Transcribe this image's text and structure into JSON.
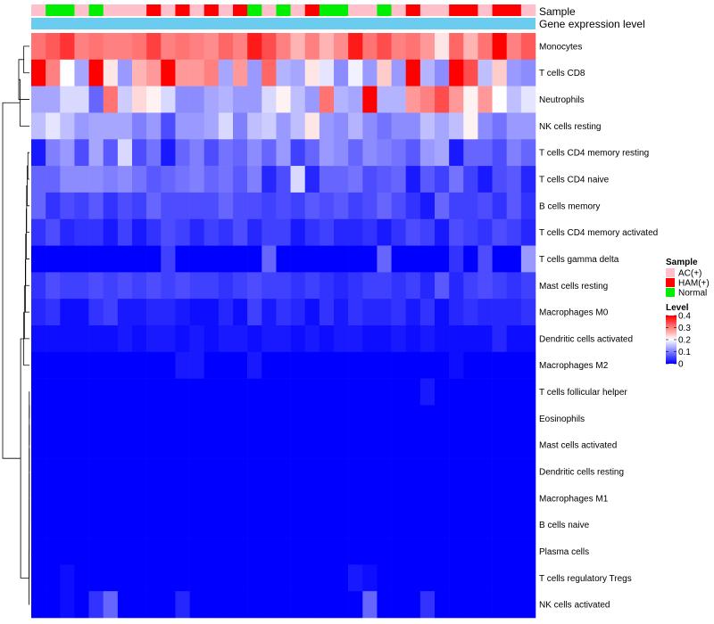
{
  "chart_data": {
    "type": "heatmap",
    "title": "",
    "annotation_tracks": [
      {
        "label": "Sample",
        "values": [
          "AC(+)",
          "Normal",
          "Normal",
          "AC(+)",
          "Normal",
          "AC(+)",
          "AC(+)",
          "AC(+)",
          "HAM(+)",
          "AC(+)",
          "HAM(+)",
          "AC(+)",
          "HAM(+)",
          "AC(+)",
          "HAM(+)",
          "Normal",
          "AC(+)",
          "Normal",
          "AC(+)",
          "HAM(+)",
          "Normal",
          "Normal",
          "AC(+)",
          "AC(+)",
          "Normal",
          "AC(+)",
          "HAM(+)",
          "AC(+)",
          "AC(+)",
          "HAM(+)",
          "HAM(+)",
          "AC(+)",
          "HAM(+)",
          "HAM(+)",
          "AC(+)"
        ]
      },
      {
        "label": "Gene expression level",
        "values": [
          "Gene expression level"
        ]
      }
    ],
    "rows": [
      "Monocytes",
      "T cells CD8",
      "Neutrophils",
      "NK cells resting",
      "T cells CD4 memory resting",
      "T cells CD4 naive",
      "B cells memory",
      "T cells CD4 memory activated",
      "T cells gamma delta",
      "Mast cells resting",
      "Macrophages M0",
      "Dendritic cells activated",
      "Macrophages M2",
      "T cells follicular helper",
      "Eosinophils",
      "Mast cells activated",
      "Dendritic cells resting",
      "Macrophages M1",
      "B cells naive",
      "Plasma cells",
      "T cells regulatory  Tregs",
      "NK cells activated"
    ],
    "values": [
      [
        0.31,
        0.33,
        0.36,
        0.3,
        0.31,
        0.3,
        0.3,
        0.31,
        0.35,
        0.3,
        0.31,
        0.3,
        0.29,
        0.32,
        0.3,
        0.38,
        0.34,
        0.3,
        0.26,
        0.3,
        0.26,
        0.29,
        0.38,
        0.31,
        0.34,
        0.3,
        0.31,
        0.28,
        0.22,
        0.32,
        0.26,
        0.31,
        0.4,
        0.3,
        0.33
      ],
      [
        0.4,
        0.3,
        0.2,
        0.13,
        0.4,
        0.22,
        0.12,
        0.26,
        0.28,
        0.4,
        0.28,
        0.28,
        0.3,
        0.13,
        0.28,
        0.12,
        0.32,
        0.14,
        0.13,
        0.22,
        0.18,
        0.11,
        0.19,
        0.12,
        0.24,
        0.12,
        0.4,
        0.14,
        0.11,
        0.4,
        0.34,
        0.15,
        0.24,
        0.12,
        0.11
      ],
      [
        0.13,
        0.13,
        0.17,
        0.17,
        0.08,
        0.31,
        0.16,
        0.23,
        0.21,
        0.17,
        0.11,
        0.11,
        0.13,
        0.14,
        0.12,
        0.12,
        0.17,
        0.21,
        0.15,
        0.12,
        0.31,
        0.14,
        0.13,
        0.4,
        0.14,
        0.14,
        0.28,
        0.3,
        0.34,
        0.28,
        0.21,
        0.28,
        0.2,
        0.15,
        0.18
      ],
      [
        0.15,
        0.18,
        0.15,
        0.12,
        0.13,
        0.13,
        0.13,
        0.1,
        0.12,
        0.06,
        0.12,
        0.12,
        0.13,
        0.17,
        0.1,
        0.15,
        0.16,
        0.12,
        0.15,
        0.22,
        0.12,
        0.11,
        0.14,
        0.11,
        0.09,
        0.11,
        0.11,
        0.15,
        0.13,
        0.15,
        0.21,
        0.11,
        0.09,
        0.12,
        0.12
      ],
      [
        0.02,
        0.1,
        0.12,
        0.06,
        0.13,
        0.07,
        0.17,
        0.06,
        0.09,
        0.02,
        0.08,
        0.1,
        0.06,
        0.09,
        0.08,
        0.11,
        0.08,
        0.12,
        0.05,
        0.08,
        0.12,
        0.11,
        0.08,
        0.11,
        0.1,
        0.09,
        0.07,
        0.12,
        0.13,
        0.02,
        0.08,
        0.08,
        0.06,
        0.1,
        0.08
      ],
      [
        0.08,
        0.08,
        0.11,
        0.11,
        0.11,
        0.1,
        0.11,
        0.09,
        0.07,
        0.08,
        0.09,
        0.1,
        0.08,
        0.09,
        0.07,
        0.1,
        0.03,
        0.06,
        0.17,
        0.03,
        0.08,
        0.08,
        0.09,
        0.06,
        0.07,
        0.08,
        0.02,
        0.07,
        0.05,
        0.09,
        0.05,
        0.02,
        0.06,
        0.07,
        0.03
      ],
      [
        0.08,
        0.04,
        0.06,
        0.05,
        0.07,
        0.04,
        0.06,
        0.05,
        0.08,
        0.06,
        0.06,
        0.06,
        0.06,
        0.08,
        0.06,
        0.06,
        0.05,
        0.06,
        0.05,
        0.07,
        0.06,
        0.07,
        0.05,
        0.06,
        0.08,
        0.06,
        0.04,
        0.02,
        0.08,
        0.05,
        0.05,
        0.06,
        0.04,
        0.07,
        0.04
      ],
      [
        0.04,
        0.06,
        0.03,
        0.04,
        0.04,
        0.02,
        0.05,
        0.02,
        0.04,
        0.06,
        0.05,
        0.03,
        0.05,
        0.04,
        0.06,
        0.03,
        0.05,
        0.05,
        0.02,
        0.04,
        0.05,
        0.03,
        0.03,
        0.04,
        0.02,
        0.04,
        0.06,
        0.05,
        0.02,
        0.06,
        0.05,
        0.04,
        0.06,
        0.05,
        0.03
      ],
      [
        0.0,
        0.0,
        0.0,
        0.0,
        0.0,
        0.0,
        0.0,
        0.0,
        0.0,
        0.05,
        0.0,
        0.0,
        0.0,
        0.0,
        0.0,
        0.0,
        0.08,
        0.0,
        0.0,
        0.0,
        0.0,
        0.0,
        0.0,
        0.0,
        0.08,
        0.0,
        0.0,
        0.0,
        0.0,
        0.04,
        0.0,
        0.06,
        0.0,
        0.0,
        0.12
      ],
      [
        0.04,
        0.06,
        0.05,
        0.05,
        0.06,
        0.05,
        0.06,
        0.05,
        0.06,
        0.05,
        0.06,
        0.05,
        0.05,
        0.04,
        0.05,
        0.06,
        0.05,
        0.05,
        0.04,
        0.05,
        0.04,
        0.03,
        0.04,
        0.05,
        0.05,
        0.04,
        0.05,
        0.03,
        0.07,
        0.03,
        0.05,
        0.06,
        0.05,
        0.04,
        0.05
      ],
      [
        0.03,
        0.04,
        0.01,
        0.01,
        0.04,
        0.05,
        0.02,
        0.02,
        0.03,
        0.03,
        0.02,
        0.01,
        0.01,
        0.03,
        0.01,
        0.05,
        0.02,
        0.04,
        0.03,
        0.01,
        0.04,
        0.02,
        0.04,
        0.03,
        0.03,
        0.04,
        0.02,
        0.04,
        0.01,
        0.03,
        0.04,
        0.03,
        0.03,
        0.03,
        0.04
      ],
      [
        0.01,
        0.01,
        0.01,
        0.01,
        0.01,
        0.01,
        0.02,
        0.01,
        0.02,
        0.02,
        0.01,
        0.02,
        0.01,
        0.02,
        0.02,
        0.01,
        0.02,
        0.02,
        0.01,
        0.02,
        0.01,
        0.02,
        0.02,
        0.01,
        0.01,
        0.02,
        0.01,
        0.02,
        0.01,
        0.01,
        0.01,
        0.01,
        0.03,
        0.01,
        0.01
      ],
      [
        0.0,
        0.0,
        0.0,
        0.0,
        0.0,
        0.0,
        0.0,
        0.0,
        0.0,
        0.0,
        0.02,
        0.02,
        0.0,
        0.0,
        0.0,
        0.02,
        0.0,
        0.0,
        0.0,
        0.0,
        0.0,
        0.0,
        0.0,
        0.0,
        0.0,
        0.0,
        0.0,
        0.0,
        0.0,
        0.01,
        0.0,
        0.0,
        0.0,
        0.0,
        0.0
      ],
      [
        0.0,
        0.0,
        0.0,
        0.0,
        0.0,
        0.0,
        0.0,
        0.0,
        0.0,
        0.0,
        0.0,
        0.0,
        0.0,
        0.0,
        0.0,
        0.0,
        0.0,
        0.0,
        0.0,
        0.0,
        0.0,
        0.0,
        0.0,
        0.0,
        0.0,
        0.0,
        0.0,
        0.02,
        0.0,
        0.0,
        0.0,
        0.0,
        0.0,
        0.0,
        0.0
      ],
      [
        0.0,
        0.0,
        0.0,
        0.0,
        0.0,
        0.0,
        0.0,
        0.0,
        0.0,
        0.0,
        0.0,
        0.0,
        0.0,
        0.0,
        0.0,
        0.0,
        0.0,
        0.0,
        0.0,
        0.0,
        0.0,
        0.0,
        0.0,
        0.0,
        0.0,
        0.0,
        0.0,
        0.0,
        0.0,
        0.0,
        0.0,
        0.0,
        0.0,
        0.0,
        0.0
      ],
      [
        0.0,
        0.0,
        0.0,
        0.0,
        0.0,
        0.0,
        0.0,
        0.0,
        0.0,
        0.0,
        0.0,
        0.0,
        0.0,
        0.0,
        0.0,
        0.0,
        0.0,
        0.0,
        0.0,
        0.0,
        0.0,
        0.0,
        0.0,
        0.0,
        0.0,
        0.0,
        0.0,
        0.0,
        0.0,
        0.0,
        0.0,
        0.0,
        0.0,
        0.0,
        0.0
      ],
      [
        0.0,
        0.0,
        0.0,
        0.0,
        0.0,
        0.0,
        0.0,
        0.0,
        0.0,
        0.0,
        0.0,
        0.0,
        0.0,
        0.0,
        0.0,
        0.0,
        0.0,
        0.0,
        0.0,
        0.0,
        0.0,
        0.0,
        0.0,
        0.0,
        0.0,
        0.0,
        0.0,
        0.0,
        0.0,
        0.0,
        0.0,
        0.0,
        0.0,
        0.0,
        0.0
      ],
      [
        0.0,
        0.0,
        0.0,
        0.0,
        0.0,
        0.0,
        0.0,
        0.0,
        0.0,
        0.0,
        0.0,
        0.0,
        0.0,
        0.0,
        0.0,
        0.0,
        0.0,
        0.0,
        0.0,
        0.0,
        0.0,
        0.0,
        0.0,
        0.0,
        0.0,
        0.0,
        0.0,
        0.0,
        0.0,
        0.0,
        0.0,
        0.0,
        0.0,
        0.0,
        0.0
      ],
      [
        0.0,
        0.0,
        0.0,
        0.0,
        0.0,
        0.0,
        0.0,
        0.0,
        0.0,
        0.0,
        0.0,
        0.0,
        0.0,
        0.0,
        0.0,
        0.0,
        0.0,
        0.0,
        0.0,
        0.0,
        0.0,
        0.0,
        0.0,
        0.0,
        0.0,
        0.0,
        0.0,
        0.0,
        0.0,
        0.0,
        0.0,
        0.0,
        0.0,
        0.0,
        0.0
      ],
      [
        0.0,
        0.0,
        0.0,
        0.0,
        0.0,
        0.0,
        0.0,
        0.0,
        0.0,
        0.0,
        0.0,
        0.0,
        0.0,
        0.0,
        0.0,
        0.0,
        0.0,
        0.0,
        0.0,
        0.0,
        0.0,
        0.0,
        0.0,
        0.0,
        0.0,
        0.0,
        0.0,
        0.0,
        0.0,
        0.0,
        0.0,
        0.0,
        0.0,
        0.0,
        0.0
      ],
      [
        0.0,
        0.0,
        0.01,
        0.0,
        0.0,
        0.0,
        0.0,
        0.0,
        0.0,
        0.0,
        0.0,
        0.0,
        0.0,
        0.0,
        0.0,
        0.0,
        0.0,
        0.0,
        0.0,
        0.0,
        0.0,
        0.0,
        0.02,
        0.01,
        0.0,
        0.0,
        0.0,
        0.0,
        0.0,
        0.0,
        0.0,
        0.0,
        0.0,
        0.0,
        0.0
      ],
      [
        0.0,
        0.0,
        0.01,
        0.0,
        0.04,
        0.08,
        0.0,
        0.0,
        0.0,
        0.0,
        0.03,
        0.0,
        0.0,
        0.0,
        0.0,
        0.0,
        0.0,
        0.0,
        0.0,
        0.0,
        0.0,
        0.0,
        0.0,
        0.08,
        0.0,
        0.0,
        0.0,
        0.04,
        0.0,
        0.0,
        0.0,
        0.0,
        0.0,
        0.0,
        0.0
      ]
    ],
    "dendrogram": [
      [
        0,
        1
      ],
      [
        22,
        2
      ],
      [
        23,
        3
      ],
      [
        4,
        5
      ],
      [
        25,
        6
      ],
      [
        26,
        7
      ],
      [
        27,
        8
      ],
      [
        28,
        9
      ],
      [
        29,
        10
      ],
      [
        30,
        11
      ],
      [
        31,
        12
      ],
      [
        13,
        14
      ],
      [
        33,
        15
      ],
      [
        34,
        16
      ],
      [
        35,
        17
      ],
      [
        36,
        18
      ],
      [
        37,
        19
      ],
      [
        38,
        20
      ],
      [
        39,
        21
      ],
      [
        32,
        40
      ],
      [
        24,
        41
      ]
    ],
    "dendrogram_heights": [
      0.18,
      0.34,
      0.3,
      0.05,
      0.07,
      0.09,
      0.1,
      0.12,
      0.13,
      0.16,
      0.18,
      0.005,
      0.005,
      0.006,
      0.006,
      0.007,
      0.008,
      0.009,
      0.012,
      0.28,
      0.85
    ],
    "legends": [
      {
        "title": "Sample",
        "entries": [
          {
            "label": "AC(+)",
            "color": "#FFC0CB"
          },
          {
            "label": "HAM(+)",
            "color": "#FF0000"
          },
          {
            "label": "Normal",
            "color": "#00EE00"
          }
        ]
      },
      {
        "title": "Level",
        "ticks": [
          "0.4",
          "0.3",
          "0.2",
          "0.1",
          "0"
        ],
        "tick_values": [
          0.4,
          0.3,
          0.2,
          0.1,
          0.0
        ],
        "range": [
          0,
          0.4
        ]
      }
    ],
    "colors": {
      "low": "#0000FF",
      "mid": "#FFFFFF",
      "high": "#FF0000",
      "mid_value": 0.2,
      "gene_bar": "#6CCCF0",
      "dendrogram": "#000000"
    }
  }
}
